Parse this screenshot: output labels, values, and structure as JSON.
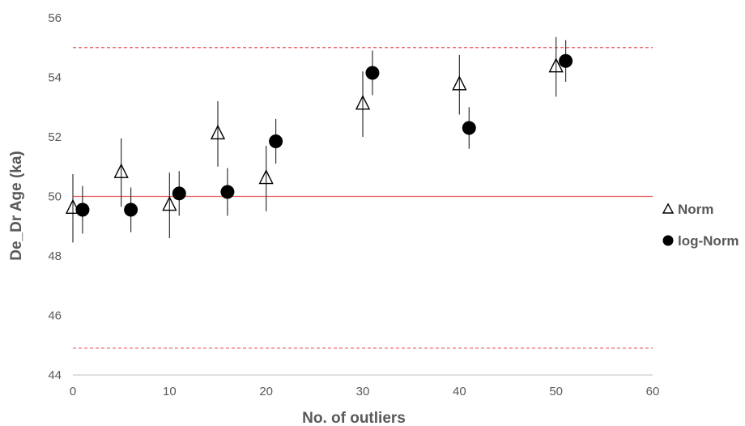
{
  "chart_data": {
    "type": "scatter",
    "title": "",
    "xlabel": "No. of outliers",
    "ylabel": "De_Dr Age (ka)",
    "xlim": [
      0,
      60
    ],
    "ylim": [
      44,
      56
    ],
    "x_ticks": [
      "0",
      "10",
      "20",
      "30",
      "40",
      "50",
      "60"
    ],
    "y_ticks": [
      "44",
      "46",
      "48",
      "50",
      "52",
      "54",
      "56"
    ],
    "grid": false,
    "legend_position": "right",
    "reference_lines": [
      {
        "y": 50,
        "style": "solid",
        "color": "#e8595b"
      },
      {
        "y": 55,
        "style": "dashed",
        "color": "#e8595b"
      },
      {
        "y": 44.9,
        "style": "dashed",
        "color": "#e8595b"
      }
    ],
    "series": [
      {
        "name": "Norm",
        "marker": "open-triangle",
        "x": [
          0,
          5,
          10,
          15,
          20,
          30,
          40,
          50
        ],
        "y": [
          49.6,
          50.8,
          49.7,
          52.1,
          50.6,
          53.1,
          53.75,
          54.35
        ],
        "err": [
          1.15,
          1.15,
          1.1,
          1.1,
          1.1,
          1.1,
          1.0,
          1.0
        ]
      },
      {
        "name": "log-Norm",
        "marker": "filled-circle",
        "x": [
          1,
          6,
          11,
          16,
          21,
          31,
          41,
          51
        ],
        "y": [
          49.55,
          49.55,
          50.1,
          50.15,
          51.85,
          54.15,
          52.3,
          54.55
        ],
        "err": [
          0.8,
          0.75,
          0.75,
          0.8,
          0.75,
          0.75,
          0.7,
          0.7
        ]
      }
    ]
  },
  "colors": {
    "axis": "#bfbfbf",
    "text": "#595959",
    "reference": "#e8595b",
    "marker": "#000000",
    "errorbar": "#333333"
  }
}
